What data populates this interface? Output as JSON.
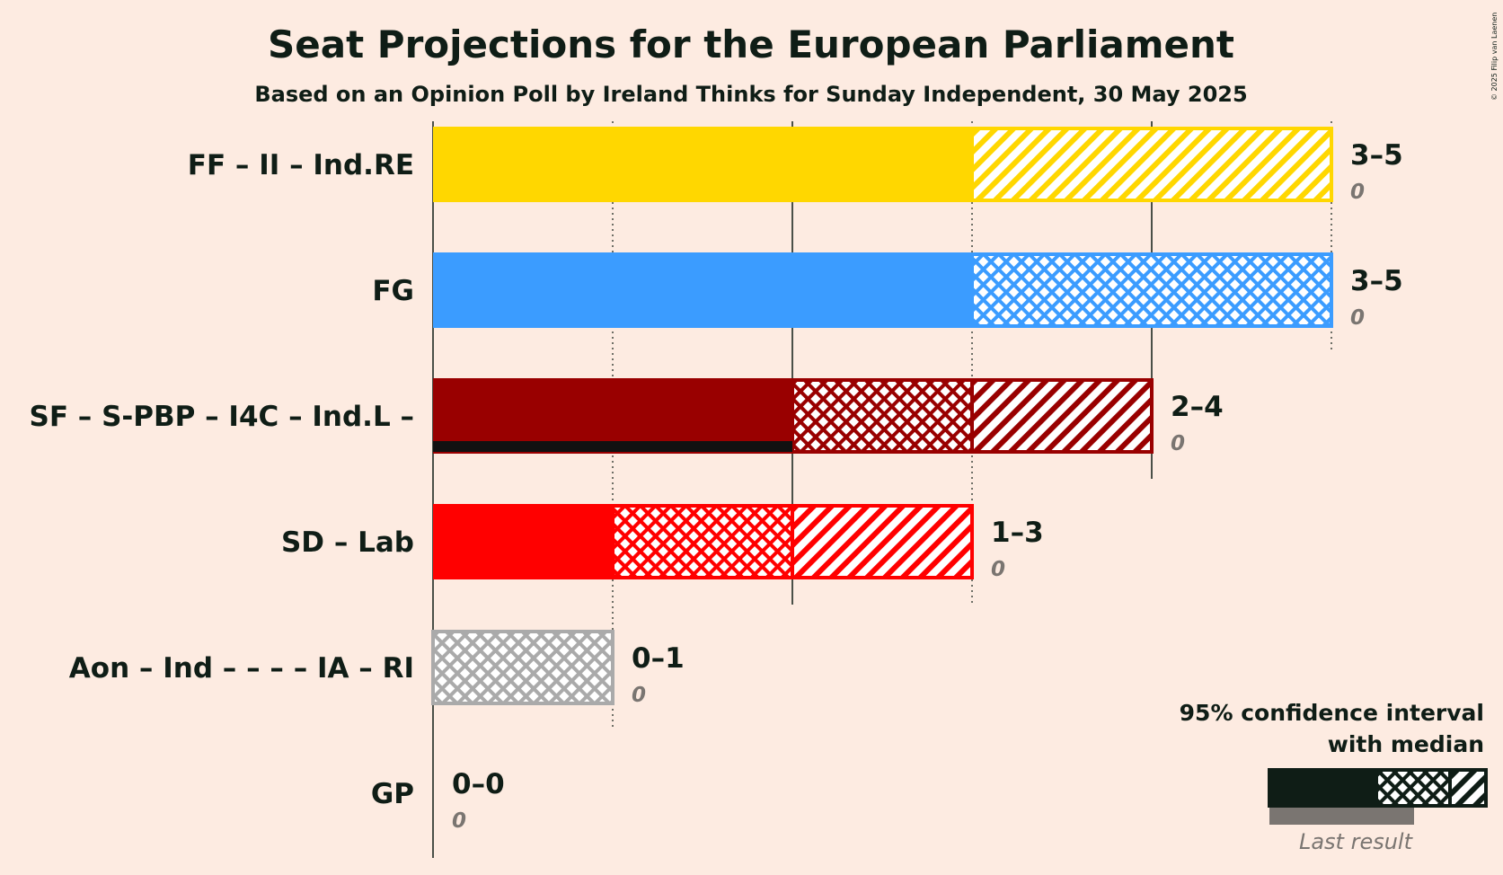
{
  "chart_data": {
    "type": "bar",
    "orientation": "horizontal",
    "title": "Seat Projections for the European Parliament",
    "subtitle": "Based on an Opinion Poll by Ireland Thinks for Sunday Independent, 30 May 2025",
    "xlim": [
      0,
      5
    ],
    "grid": true,
    "categories": [
      "FF – II – Ind.RE",
      "FG",
      "SF – S-PBP – I4C – Ind.L –",
      "SD – Lab",
      "Aon – Ind – – – – IA – RI",
      "GP"
    ],
    "series": [
      {
        "category": "FF – II – Ind.RE",
        "color": "#FFD700",
        "low": 3,
        "median": 3,
        "high": 5,
        "range_label": "3–5",
        "last_result": 0,
        "last_label": "0"
      },
      {
        "category": "FG",
        "color": "#3B9CFF",
        "low": 3,
        "median": 3,
        "high": 5,
        "range_label": "3–5",
        "last_result": 0,
        "last_label": "0"
      },
      {
        "category": "SF – S-PBP – I4C – Ind.L –",
        "color": "#990000",
        "low": 2,
        "median": 3,
        "high": 4,
        "range_label": "2–4",
        "last_result": 0,
        "last_label": "0"
      },
      {
        "category": "SD – Lab",
        "color": "#FF0000",
        "low": 1,
        "median": 2,
        "high": 3,
        "range_label": "1–3",
        "last_result": 0,
        "last_label": "0"
      },
      {
        "category": "Aon – Ind – – – – IA – RI",
        "color": "#AAAAAA",
        "low": 0,
        "median": 0,
        "high": 1,
        "range_label": "0–1",
        "last_result": 0,
        "last_label": "0"
      },
      {
        "category": "GP",
        "color": "#2E8B57",
        "low": 0,
        "median": 0,
        "high": 0,
        "range_label": "0–0",
        "last_result": 0,
        "last_label": "0"
      }
    ],
    "legend": {
      "line1": "95% confidence interval",
      "line2": "with median",
      "last_result": "Last result",
      "placement": "bottom-right"
    }
  },
  "copyright": "© 2025 Filip van Laenen"
}
